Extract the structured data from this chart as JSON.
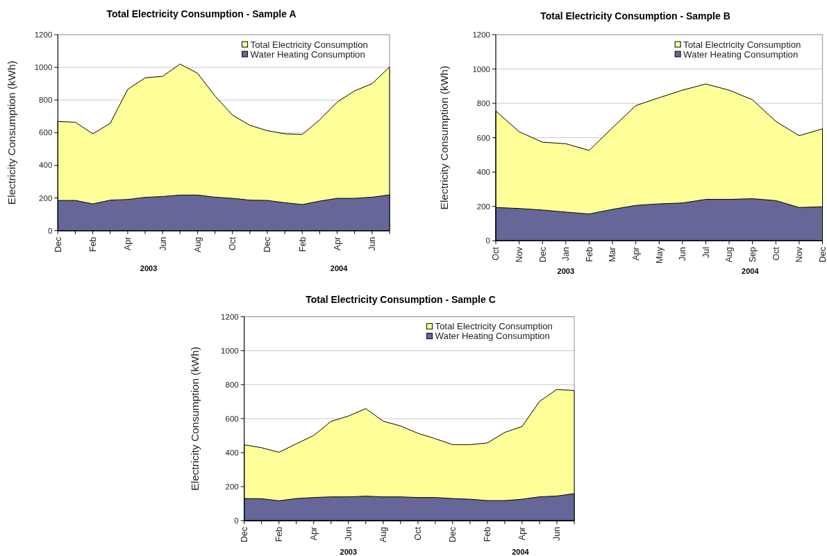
{
  "chart_data": [
    {
      "type": "area",
      "title": "Total Electricity Consumption - Sample A",
      "ylabel": "Electricity Consumption (kWh)",
      "categories": [
        "Dec",
        null,
        "Feb",
        null,
        "Apr",
        null,
        "Jun",
        null,
        "Aug",
        null,
        "Oct",
        null,
        "Dec",
        null,
        "Feb",
        null,
        "Apr",
        null,
        "Jun",
        null
      ],
      "series": [
        {
          "name": "Total Electricity Consumption",
          "color": "#ffff99",
          "values": [
            668,
            664,
            593,
            657,
            865,
            936,
            945,
            1020,
            964,
            825,
            708,
            645,
            612,
            593,
            589,
            679,
            787,
            856,
            900,
            1002
          ]
        },
        {
          "name": "Water Heating Consumption",
          "color": "#666699",
          "values": [
            185,
            185,
            164,
            187,
            191,
            204,
            209,
            218,
            218,
            205,
            198,
            187,
            185,
            171,
            160,
            181,
            198,
            198,
            205,
            219
          ]
        }
      ],
      "ylim": [
        0,
        1200
      ],
      "yticks": [
        0,
        200,
        400,
        600,
        800,
        1000,
        1200
      ],
      "grid": "y",
      "legend": "top right",
      "annotations": [
        "2003",
        "2004"
      ]
    },
    {
      "type": "area",
      "title": "Total Electricity Consumption - Sample B",
      "ylabel": "Electricity Consumption (kWh)",
      "categories": [
        "Oct",
        "Nov",
        "Dec",
        "Jan",
        "Feb",
        "Mar",
        "Apr",
        "May",
        "Jun",
        "Jul",
        "Aug",
        "Sep",
        "Oct",
        "Nov",
        "Dec"
      ],
      "series": [
        {
          "name": "Total Electricity Consumption",
          "color": "#ffff99",
          "values": [
            756,
            635,
            574,
            565,
            526,
            658,
            787,
            833,
            877,
            913,
            877,
            821,
            695,
            612,
            652
          ]
        },
        {
          "name": "Water Heating Consumption",
          "color": "#666699",
          "values": [
            194,
            188,
            179,
            167,
            156,
            183,
            206,
            215,
            220,
            241,
            241,
            245,
            234,
            194,
            198
          ]
        }
      ],
      "ylim": [
        0,
        1200
      ],
      "yticks": [
        0,
        200,
        400,
        600,
        800,
        1000,
        1200
      ],
      "grid": "y",
      "legend": "top right",
      "annotations": [
        "2003",
        "2004"
      ]
    },
    {
      "type": "area",
      "title": "Total Electricity Consumption - Sample C",
      "ylabel": "Electricity Consumption (kWh)",
      "categories": [
        "Dec",
        null,
        "Feb",
        null,
        "Apr",
        null,
        "Jun",
        null,
        "Aug",
        null,
        "Oct",
        null,
        "Dec",
        null,
        "Feb",
        null,
        "Apr",
        null,
        "Jun",
        null
      ],
      "series": [
        {
          "name": "Total Electricity Consumption",
          "color": "#ffff99",
          "values": [
            446,
            429,
            402,
            452,
            501,
            584,
            615,
            659,
            585,
            557,
            514,
            482,
            447,
            447,
            457,
            519,
            554,
            701,
            772,
            765
          ]
        },
        {
          "name": "Water Heating Consumption",
          "color": "#666699",
          "values": [
            130,
            129,
            117,
            130,
            136,
            140,
            140,
            144,
            140,
            140,
            136,
            136,
            130,
            126,
            118,
            118,
            126,
            140,
            145,
            159
          ]
        }
      ],
      "ylim": [
        0,
        1200
      ],
      "yticks": [
        0,
        200,
        400,
        600,
        800,
        1000,
        1200
      ],
      "grid": "y",
      "legend": "top right",
      "annotations": [
        "2003",
        "2004"
      ]
    }
  ]
}
